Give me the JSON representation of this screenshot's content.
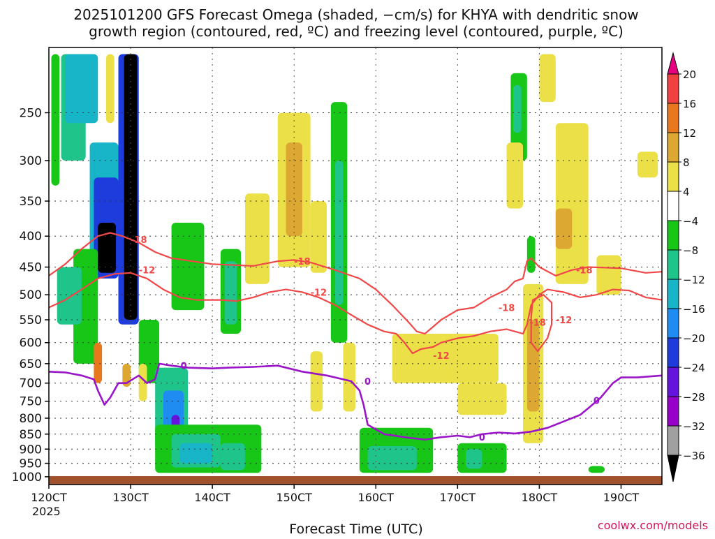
{
  "chart_data": {
    "type": "heatmap",
    "title_lines": [
      "2025101200 GFS Forecast Omega (shaded, −cm/s) for KHYA with dendritic snow",
      "growth region (contoured, red, ºC) and freezing level (contoured, purple, ºC)"
    ],
    "xlabel": "Forecast Time (UTC)",
    "ylabel": "",
    "watermark": "coolwx.com/models",
    "x_range": [
      120,
      195
    ],
    "x_ticks": [
      {
        "value": 120,
        "label": "120CT"
      },
      {
        "value": 130,
        "label": "130CT"
      },
      {
        "value": 140,
        "label": "140CT"
      },
      {
        "value": 150,
        "label": "150CT"
      },
      {
        "value": 160,
        "label": "160CT"
      },
      {
        "value": 170,
        "label": "170CT"
      },
      {
        "value": 180,
        "label": "180CT"
      },
      {
        "value": 190,
        "label": "190CT"
      }
    ],
    "x_year_label": "2025",
    "y_range_hpa": [
      1030,
      195
    ],
    "y_ticks": [
      250,
      300,
      350,
      400,
      450,
      500,
      550,
      600,
      650,
      700,
      750,
      800,
      850,
      900,
      950,
      1000
    ],
    "colorbar": {
      "labels": [
        "20",
        "16",
        "12",
        "8",
        "4",
        "−4",
        "−8",
        "−12",
        "−16",
        "−20",
        "−24",
        "−28",
        "−32",
        "−36"
      ],
      "colors": [
        "#e60080",
        "#f04040",
        "#e8781e",
        "#dca832",
        "#ece048",
        "#ffffff",
        "#17c617",
        "#1ec48a",
        "#18b4c8",
        "#1e8cf0",
        "#1e3cdc",
        "#6414dc",
        "#9600c8",
        "#a0a0a0",
        "#000000"
      ]
    },
    "shading": [
      {
        "t0": 120.3,
        "t1": 121.3,
        "p0": 200,
        "p1": 330,
        "level": -8
      },
      {
        "t0": 121.5,
        "t1": 124.5,
        "p0": 200,
        "p1": 300,
        "level": -12
      },
      {
        "t0": 122,
        "t1": 126,
        "p0": 200,
        "p1": 260,
        "level": -16
      },
      {
        "t0": 125,
        "t1": 128.5,
        "p0": 280,
        "p1": 460,
        "level": -16
      },
      {
        "t0": 125.5,
        "t1": 128.5,
        "p0": 320,
        "p1": 470,
        "level": -24
      },
      {
        "t0": 126,
        "t1": 128.2,
        "p0": 380,
        "p1": 460,
        "level": -36
      },
      {
        "t0": 128.5,
        "t1": 131,
        "p0": 200,
        "p1": 560,
        "level": -24
      },
      {
        "t0": 129.2,
        "t1": 130.8,
        "p0": 200,
        "p1": 550,
        "level": -36
      },
      {
        "t0": 123,
        "t1": 126,
        "p0": 420,
        "p1": 650,
        "level": -8
      },
      {
        "t0": 121,
        "t1": 124,
        "p0": 450,
        "p1": 560,
        "level": -12
      },
      {
        "t0": 131,
        "t1": 133.5,
        "p0": 550,
        "p1": 700,
        "level": -8
      },
      {
        "t0": 133,
        "t1": 137,
        "p0": 660,
        "p1": 900,
        "level": -12
      },
      {
        "t0": 134,
        "t1": 136.5,
        "p0": 720,
        "p1": 870,
        "level": -20
      },
      {
        "t0": 135,
        "t1": 136,
        "p0": 790,
        "p1": 860,
        "level": -28
      },
      {
        "t0": 133,
        "t1": 146,
        "p0": 820,
        "p1": 985,
        "level": -8
      },
      {
        "t0": 135,
        "t1": 141,
        "p0": 850,
        "p1": 965,
        "level": -12
      },
      {
        "t0": 136,
        "t1": 140,
        "p0": 880,
        "p1": 950,
        "level": -16
      },
      {
        "t0": 141,
        "t1": 143.5,
        "p0": 420,
        "p1": 580,
        "level": -8
      },
      {
        "t0": 141.5,
        "t1": 143,
        "p0": 440,
        "p1": 560,
        "level": -12
      },
      {
        "t0": 141,
        "t1": 144,
        "p0": 880,
        "p1": 975,
        "level": -12
      },
      {
        "t0": 135,
        "t1": 139,
        "p0": 380,
        "p1": 530,
        "level": -8
      },
      {
        "t0": 154.5,
        "t1": 156.5,
        "p0": 240,
        "p1": 600,
        "level": -8
      },
      {
        "t0": 155,
        "t1": 156,
        "p0": 300,
        "p1": 520,
        "level": -12
      },
      {
        "t0": 158,
        "t1": 167,
        "p0": 830,
        "p1": 985,
        "level": -8
      },
      {
        "t0": 159,
        "t1": 165,
        "p0": 890,
        "p1": 975,
        "level": -12
      },
      {
        "t0": 170,
        "t1": 176,
        "p0": 880,
        "p1": 985,
        "level": -8
      },
      {
        "t0": 171,
        "t1": 173,
        "p0": 900,
        "p1": 970,
        "level": -12
      },
      {
        "t0": 176.5,
        "t1": 178.5,
        "p0": 215,
        "p1": 300,
        "level": -8
      },
      {
        "t0": 176.8,
        "t1": 177.8,
        "p0": 225,
        "p1": 270,
        "level": -12
      },
      {
        "t0": 178.5,
        "t1": 179.5,
        "p0": 400,
        "p1": 460,
        "level": -8
      },
      {
        "t0": 186,
        "t1": 188,
        "p0": 960,
        "p1": 985,
        "level": -8
      },
      {
        "t0": 162,
        "t1": 175,
        "p0": 580,
        "p1": 700,
        "level": 4
      },
      {
        "t0": 170,
        "t1": 176,
        "p0": 700,
        "p1": 790,
        "level": 4
      },
      {
        "t0": 148,
        "t1": 152,
        "p0": 250,
        "p1": 450,
        "level": 4
      },
      {
        "t0": 149,
        "t1": 151,
        "p0": 280,
        "p1": 400,
        "level": 8
      },
      {
        "t0": 144,
        "t1": 147,
        "p0": 340,
        "p1": 480,
        "level": 4
      },
      {
        "t0": 152,
        "t1": 154,
        "p0": 350,
        "p1": 460,
        "level": 4
      },
      {
        "t0": 182,
        "t1": 186,
        "p0": 260,
        "p1": 480,
        "level": 4
      },
      {
        "t0": 182,
        "t1": 184,
        "p0": 360,
        "p1": 420,
        "level": 8
      },
      {
        "t0": 178,
        "t1": 180.5,
        "p0": 480,
        "p1": 880,
        "level": 4
      },
      {
        "t0": 178.5,
        "t1": 180,
        "p0": 550,
        "p1": 780,
        "level": 8
      },
      {
        "t0": 180,
        "t1": 182,
        "p0": 200,
        "p1": 240,
        "level": 4
      },
      {
        "t0": 176,
        "t1": 178,
        "p0": 280,
        "p1": 360,
        "level": 4
      },
      {
        "t0": 187,
        "t1": 190,
        "p0": 430,
        "p1": 500,
        "level": 4
      },
      {
        "t0": 192,
        "t1": 194.5,
        "p0": 290,
        "p1": 320,
        "level": 4
      },
      {
        "t0": 125.5,
        "t1": 126.5,
        "p0": 600,
        "p1": 700,
        "level": 12
      },
      {
        "t0": 129,
        "t1": 130,
        "p0": 650,
        "p1": 710,
        "level": 8
      },
      {
        "t0": 127,
        "t1": 128,
        "p0": 200,
        "p1": 260,
        "level": 4
      },
      {
        "t0": 131,
        "t1": 132,
        "p0": 650,
        "p1": 750,
        "level": 4
      },
      {
        "t0": 156,
        "t1": 157.5,
        "p0": 600,
        "p1": 780,
        "level": 4
      },
      {
        "t0": 152,
        "t1": 153.5,
        "p0": 620,
        "p1": 780,
        "level": 4
      }
    ],
    "contours": {
      "minus18": [
        [
          120,
          465
        ],
        [
          122,
          445
        ],
        [
          124,
          420
        ],
        [
          126,
          400
        ],
        [
          127.5,
          395
        ],
        [
          129,
          400
        ],
        [
          131,
          410
        ],
        [
          133,
          425
        ],
        [
          135,
          435
        ],
        [
          140,
          445
        ],
        [
          145,
          448
        ],
        [
          148,
          440
        ],
        [
          150,
          438
        ],
        [
          152,
          442
        ],
        [
          155,
          455
        ],
        [
          158,
          470
        ],
        [
          160,
          490
        ],
        [
          162,
          520
        ],
        [
          164,
          555
        ],
        [
          165,
          575
        ],
        [
          166,
          580
        ],
        [
          167,
          565
        ],
        [
          168,
          550
        ],
        [
          170,
          530
        ],
        [
          172,
          525
        ],
        [
          174,
          505
        ],
        [
          176,
          490
        ],
        [
          177,
          475
        ],
        [
          178,
          470
        ],
        [
          178.5,
          440
        ],
        [
          179,
          435
        ],
        [
          180,
          450
        ],
        [
          182,
          465
        ],
        [
          184,
          455
        ],
        [
          186,
          450
        ],
        [
          190,
          452
        ],
        [
          193,
          460
        ],
        [
          195,
          458
        ]
      ],
      "minus12": [
        [
          120,
          525
        ],
        [
          122,
          510
        ],
        [
          124,
          490
        ],
        [
          126,
          470
        ],
        [
          128,
          462
        ],
        [
          130,
          460
        ],
        [
          132,
          470
        ],
        [
          134,
          490
        ],
        [
          136,
          505
        ],
        [
          138,
          510
        ],
        [
          141,
          510
        ],
        [
          143,
          512
        ],
        [
          145,
          505
        ],
        [
          147,
          495
        ],
        [
          149,
          490
        ],
        [
          151,
          495
        ],
        [
          153,
          505
        ],
        [
          155,
          520
        ],
        [
          157,
          540
        ],
        [
          159,
          560
        ],
        [
          161,
          575
        ],
        [
          162.5,
          580
        ],
        [
          163.5,
          600
        ],
        [
          164.5,
          625
        ],
        [
          165.5,
          615
        ],
        [
          167,
          610
        ],
        [
          168,
          600
        ],
        [
          170,
          590
        ],
        [
          172,
          585
        ],
        [
          174,
          575
        ],
        [
          176,
          570
        ],
        [
          177,
          575
        ],
        [
          178,
          580
        ],
        [
          178.5,
          560
        ],
        [
          179,
          520
        ],
        [
          180,
          500
        ],
        [
          181,
          490
        ],
        [
          183,
          495
        ],
        [
          185,
          505
        ],
        [
          187,
          500
        ],
        [
          189,
          490
        ],
        [
          191,
          492
        ],
        [
          193,
          505
        ],
        [
          195,
          510
        ]
      ],
      "minus18_pocket": [
        [
          179,
          545
        ],
        [
          179.2,
          510
        ],
        [
          180.5,
          500
        ],
        [
          181.5,
          515
        ],
        [
          181.5,
          560
        ],
        [
          181,
          590
        ],
        [
          179.8,
          620
        ],
        [
          179,
          600
        ],
        [
          179,
          545
        ]
      ],
      "zero": [
        [
          120,
          670
        ],
        [
          122,
          672
        ],
        [
          124,
          680
        ],
        [
          125.5,
          690
        ],
        [
          126,
          720
        ],
        [
          126.8,
          760
        ],
        [
          127.5,
          740
        ],
        [
          128.5,
          700
        ],
        [
          129.5,
          700
        ],
        [
          131,
          680
        ],
        [
          132,
          700
        ],
        [
          133,
          690
        ],
        [
          133.5,
          650
        ],
        [
          135,
          655
        ],
        [
          137,
          660
        ],
        [
          140,
          662
        ],
        [
          142,
          660
        ],
        [
          145,
          658
        ],
        [
          148,
          655
        ],
        [
          151,
          670
        ],
        [
          154,
          680
        ],
        [
          157,
          695
        ],
        [
          158,
          720
        ],
        [
          158.5,
          760
        ],
        [
          159,
          820
        ],
        [
          161,
          850
        ],
        [
          164,
          862
        ],
        [
          166,
          868
        ],
        [
          168,
          860
        ],
        [
          170,
          855
        ],
        [
          171.5,
          860
        ],
        [
          173,
          850
        ],
        [
          175,
          845
        ],
        [
          177,
          848
        ],
        [
          179,
          842
        ],
        [
          181,
          830
        ],
        [
          183,
          810
        ],
        [
          185,
          790
        ],
        [
          186,
          770
        ],
        [
          187.5,
          740
        ],
        [
          189,
          700
        ],
        [
          190,
          685
        ],
        [
          192,
          685
        ],
        [
          195,
          680
        ]
      ]
    },
    "contour_labels": [
      {
        "t": 131,
        "p": 405,
        "text": "-18",
        "series": "minus18"
      },
      {
        "t": 132,
        "p": 455,
        "text": "-12",
        "series": "minus12"
      },
      {
        "t": 151,
        "p": 440,
        "text": "-18",
        "series": "minus18"
      },
      {
        "t": 153,
        "p": 495,
        "text": "-12",
        "series": "minus12"
      },
      {
        "t": 176,
        "p": 525,
        "text": "-18",
        "series": "minus18"
      },
      {
        "t": 185.5,
        "p": 455,
        "text": "-18",
        "series": "minus18"
      },
      {
        "t": 179.8,
        "p": 555,
        "text": "-18",
        "series": "minus18"
      },
      {
        "t": 183,
        "p": 550,
        "text": "-12",
        "series": "minus12"
      },
      {
        "t": 168,
        "p": 630,
        "text": "-12",
        "series": "minus12"
      },
      {
        "t": 136.5,
        "p": 655,
        "text": "0",
        "series": "zero"
      },
      {
        "t": 159,
        "p": 695,
        "text": "0",
        "series": "zero"
      },
      {
        "t": 173,
        "p": 860,
        "text": "0",
        "series": "zero"
      },
      {
        "t": 187,
        "p": 748,
        "text": "0",
        "series": "zero"
      }
    ],
    "grid": true,
    "legend": "right-colorbar"
  }
}
